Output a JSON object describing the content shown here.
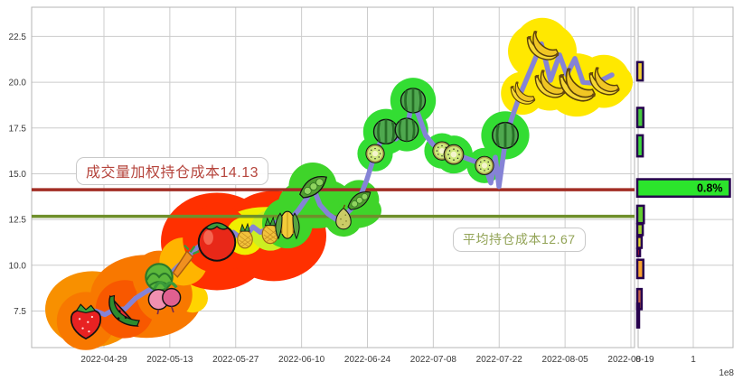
{
  "labels": {
    "vwap": "成交量加权持仓成本14.13",
    "avg": "平均持仓成本12.67"
  },
  "chart_data": [
    {
      "type": "line",
      "name": "price-cost-trend",
      "title": "",
      "ylim": [
        5.5,
        24.1
      ],
      "yticks": [
        7.5,
        10.0,
        12.5,
        15.0,
        17.5,
        20.0,
        22.5
      ],
      "ytick_labels": [
        "7.5",
        "10.0",
        "12.5",
        "15.0",
        "17.5",
        "20.0",
        "22.5"
      ],
      "xtick_labels": [
        "2022-04-29",
        "2022-05-13",
        "2022-05-27",
        "2022-06-10",
        "2022-06-24",
        "2022-07-08",
        "2022-07-22",
        "2022-08-05",
        "2022-08-19"
      ],
      "grid": true,
      "line_color": "#8583d6",
      "hlines": [
        {
          "value": 14.13,
          "color": "#a22d24"
        },
        {
          "value": 12.67,
          "color": "#6f8f2b"
        }
      ],
      "series": [
        {
          "name": "price",
          "points": [
            [
              85,
              7.1
            ],
            [
              95,
              6.95
            ],
            [
              106,
              7.5
            ],
            [
              116,
              7.3
            ],
            [
              127,
              7.6
            ],
            [
              138,
              7.6
            ],
            [
              150,
              8.2
            ],
            [
              163,
              8.6
            ],
            [
              176,
              8.9
            ],
            [
              186,
              9.4
            ],
            [
              196,
              9.9
            ],
            [
              205,
              10.3
            ],
            [
              214,
              10.8
            ],
            [
              222,
              11.1
            ],
            [
              232,
              11.4
            ],
            [
              246,
              11.6
            ],
            [
              258,
              11.8
            ],
            [
              266,
              11.5
            ],
            [
              272,
              11.6
            ],
            [
              280,
              12.1
            ],
            [
              288,
              11.8
            ],
            [
              296,
              12.0
            ],
            [
              305,
              12.35
            ],
            [
              312,
              11.95
            ],
            [
              320,
              12.45
            ],
            [
              330,
              13.0
            ],
            [
              340,
              13.7
            ],
            [
              346,
              14.3
            ],
            [
              354,
              13.3
            ],
            [
              363,
              12.8
            ],
            [
              372,
              12.5
            ],
            [
              380,
              12.65
            ],
            [
              389,
              13.1
            ],
            [
              397,
              13.55
            ],
            [
              406,
              14.7
            ],
            [
              415,
              16.1
            ],
            [
              426,
              17.3
            ],
            [
              438,
              16.9
            ],
            [
              450,
              17.4
            ],
            [
              456,
              19.0
            ],
            [
              463,
              18.2
            ],
            [
              471,
              17.1
            ],
            [
              479,
              16.6
            ],
            [
              489,
              16.25
            ],
            [
              502,
              16.05
            ],
            [
              513,
              15.9
            ],
            [
              524,
              15.7
            ],
            [
              536,
              15.5
            ],
            [
              543,
              14.5
            ],
            [
              548,
              15.9
            ],
            [
              552,
              14.3
            ],
            [
              560,
              17.1
            ],
            [
              568,
              18.3
            ],
            [
              576,
              19.4
            ],
            [
              588,
              20.8
            ],
            [
              599,
              22.1
            ],
            [
              609,
              20.1
            ],
            [
              619,
              21.5
            ],
            [
              627,
              20.4
            ],
            [
              636,
              21.3
            ],
            [
              645,
              20.0
            ],
            [
              657,
              19.95
            ],
            [
              667,
              20.15
            ],
            [
              677,
              20.4
            ]
          ]
        }
      ],
      "fruits": [
        [
          95,
          6.95,
          "strawberry",
          46,
          "#f87800"
        ],
        [
          138,
          7.6,
          "melon-slice",
          46,
          "#f85800"
        ],
        [
          176,
          9.35,
          "greens",
          42,
          "#f87800"
        ],
        [
          182,
          8.4,
          "radish",
          44,
          "#f87800"
        ],
        [
          203,
          10.2,
          "carrot",
          38,
          "#ffb400"
        ],
        [
          240,
          11.45,
          "tomato",
          54,
          "#ff3000"
        ],
        [
          271,
          11.6,
          "pineapple",
          30,
          "#f0ee00"
        ],
        [
          299,
          11.9,
          "pineapple",
          32,
          "#ccee22"
        ],
        [
          318,
          12.3,
          "corn",
          40,
          "#3fd42a"
        ],
        [
          346,
          14.3,
          "peapod",
          38,
          "#3fd42a"
        ],
        [
          380,
          12.6,
          "pear",
          30,
          "#3fd42a"
        ],
        [
          397,
          13.55,
          "peapod",
          32,
          "#3fd42a"
        ],
        [
          415,
          16.1,
          "kiwi",
          28,
          "#33dd33"
        ],
        [
          427,
          17.3,
          "watermelon",
          36,
          "#33dd33"
        ],
        [
          450,
          17.4,
          "watermelon",
          34,
          "#33dd33"
        ],
        [
          457,
          19.0,
          "watermelon",
          36,
          "#33dd33"
        ],
        [
          489,
          16.25,
          "kiwi",
          28,
          "#33dd33"
        ],
        [
          502,
          16.05,
          "kiwi",
          30,
          "#33dd33"
        ],
        [
          536,
          15.45,
          "kiwi",
          28,
          "#33dd33"
        ],
        [
          559,
          17.1,
          "watermelon",
          38,
          "#33dd33"
        ],
        [
          578,
          19.4,
          "banana",
          34,
          "#ffe800"
        ],
        [
          600,
          22.0,
          "banana",
          44,
          "#ffe800"
        ],
        [
          608,
          19.9,
          "banana",
          42,
          "#ffe800"
        ],
        [
          638,
          19.85,
          "banana",
          50,
          "#ffe800"
        ],
        [
          668,
          20.05,
          "banana",
          42,
          "#ffe800"
        ]
      ],
      "blobs": [
        [
          102,
          7.6,
          52,
          42,
          "#f89000"
        ],
        [
          162,
          8.3,
          62,
          46,
          "#f87800"
        ],
        [
          213,
          8.2,
          17,
          16,
          "#ffd400"
        ],
        [
          240,
          11.3,
          62,
          54,
          "#ff3000"
        ],
        [
          303,
          11.6,
          58,
          50,
          "#ff3000"
        ],
        [
          295,
          12.1,
          48,
          22,
          "#eef000"
        ],
        [
          350,
          13.4,
          42,
          28,
          "#3fd42a"
        ],
        [
          392,
          13.0,
          30,
          20,
          "#3fd42a"
        ],
        [
          578,
          19.35,
          22,
          20,
          "#ffe800"
        ],
        [
          600,
          21.7,
          38,
          33,
          "#ffe800"
        ],
        [
          612,
          20.0,
          28,
          25,
          "#ffe800"
        ],
        [
          646,
          20.0,
          42,
          28,
          "#ffe800"
        ],
        [
          673,
          20.0,
          27,
          23,
          "#ffe800"
        ]
      ]
    },
    {
      "type": "bar-horizontal",
      "name": "holding-price-distribution",
      "xtick_labels": [
        "0",
        "1"
      ],
      "x_scale_label": "1e8",
      "bar_border_color": "#26004d",
      "bars": [
        {
          "price_from": 20.1,
          "price_to": 21.1,
          "value_e8": 0.1,
          "color": "#f2d232",
          "label": ""
        },
        {
          "price_from": 17.55,
          "price_to": 18.6,
          "value_e8": 0.11,
          "color": "#46c83e",
          "label": ""
        },
        {
          "price_from": 15.95,
          "price_to": 17.1,
          "value_e8": 0.1,
          "color": "#3cd83c",
          "label": ""
        },
        {
          "price_from": 13.75,
          "price_to": 14.7,
          "value_e8": 1.68,
          "color": "#2ce42c",
          "label": "0.8%"
        },
        {
          "price_from": 12.3,
          "price_to": 13.25,
          "value_e8": 0.12,
          "color": "#62cc30",
          "label": ""
        },
        {
          "price_from": 11.65,
          "price_to": 12.25,
          "value_e8": 0.1,
          "color": "#a2d42a",
          "label": ""
        },
        {
          "price_from": 10.95,
          "price_to": 11.55,
          "value_e8": 0.08,
          "color": "#e6da2c",
          "label": ""
        },
        {
          "price_from": 10.5,
          "price_to": 10.9,
          "value_e8": 0.05,
          "color": "#e82020",
          "label": ""
        },
        {
          "price_from": 9.3,
          "price_to": 10.3,
          "value_e8": 0.11,
          "color": "#f8a430",
          "label": ""
        },
        {
          "price_from": 7.6,
          "price_to": 8.7,
          "value_e8": 0.08,
          "color": "#c86448",
          "label": ""
        },
        {
          "price_from": 6.6,
          "price_to": 7.9,
          "value_e8": 0.02,
          "color": "#5a1a8a",
          "label": ""
        }
      ]
    }
  ]
}
